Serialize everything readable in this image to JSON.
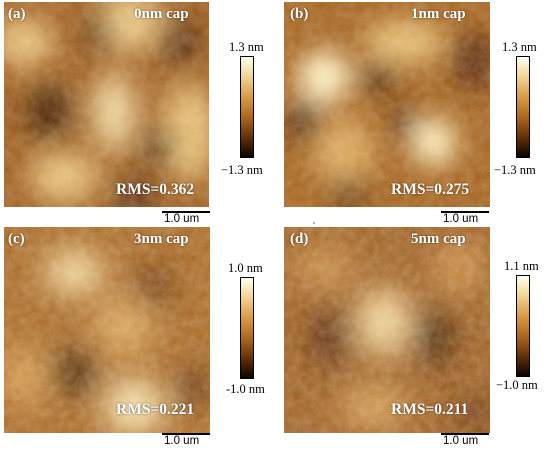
{
  "panels": [
    {
      "letter": "(a)",
      "cap": "0nm cap",
      "rms": "RMS=0.362",
      "scale": "1.0 um",
      "cmax": "1.3 nm",
      "cmin": "−1.3 nm"
    },
    {
      "letter": "(b)",
      "cap": "1nm cap",
      "rms": "RMS=0.275",
      "scale": "1.0 um",
      "cmax": "1.3 nm",
      "cmin": "−1.3 nm"
    },
    {
      "letter": "(c)",
      "cap": "3nm cap",
      "rms": "RMS=0.221",
      "scale": "1.0 um",
      "cmax": "1.0 nm",
      "cmin": "-1.0 nm"
    },
    {
      "letter": "(d)",
      "cap": "5nm cap",
      "rms": "RMS=0.211",
      "scale": "1.0 um",
      "cmax": "1.1 nm",
      "cmin": "−1.0 nm"
    }
  ],
  "colors": {
    "afm_dark": "#2a1000",
    "afm_mid": "#9a5a1c",
    "afm_light": "#fff3d4"
  }
}
